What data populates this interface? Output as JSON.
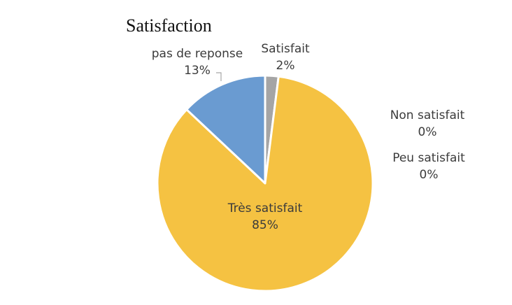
{
  "chart_data": {
    "type": "pie",
    "title": "Satisfaction",
    "categories": [
      "Satisfait",
      "Très satisfait",
      "pas de reponse",
      "Non satisfait",
      "Peu satisfait"
    ],
    "values": [
      2,
      85,
      13,
      0,
      0
    ],
    "value_labels": [
      "2%",
      "85%",
      "13%",
      "0%",
      "0%"
    ],
    "colors": [
      "#a5a5a5",
      "#f5c242",
      "#6a9bd1",
      "#4472c4",
      "#ed7d31"
    ],
    "legend": "none",
    "data_labels": "category-and-percent"
  }
}
